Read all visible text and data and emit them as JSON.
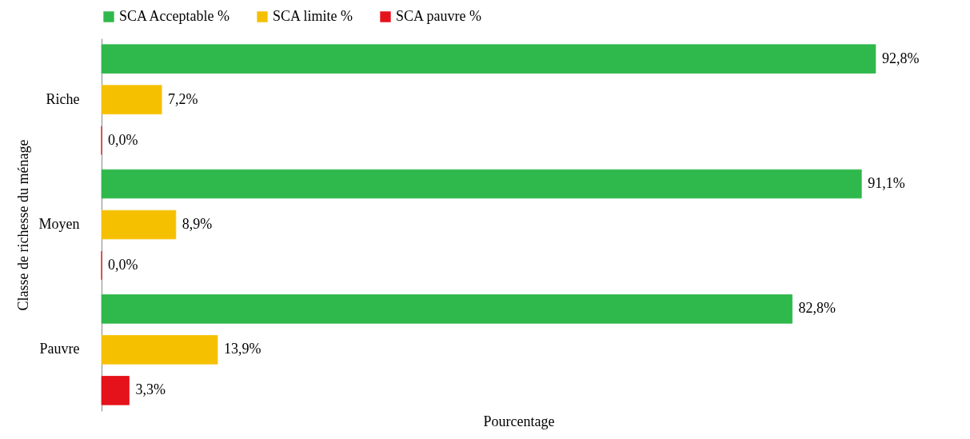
{
  "chart_data": {
    "type": "bar",
    "orientation": "horizontal",
    "xlabel": "Pourcentage",
    "ylabel": "Classe de richesse du ménage",
    "legend": "top",
    "categories": [
      "Riche",
      "Moyen",
      "Pauvre"
    ],
    "series": [
      {
        "name": "SCA Acceptable %",
        "color": "#2fb84b",
        "values": [
          92.8,
          91.1,
          82.8
        ],
        "value_labels": [
          "92,8%",
          "91,1%",
          "82,8%"
        ]
      },
      {
        "name": "SCA limite %",
        "color": "#f5c000",
        "values": [
          7.2,
          8.9,
          13.9
        ],
        "value_labels": [
          "7,2%",
          "8,9%",
          "13,9%"
        ]
      },
      {
        "name": "SCA pauvre %",
        "color": "#e5111b",
        "values": [
          0,
          0,
          3.3
        ],
        "value_labels": [
          "0,0%",
          "0,0%",
          "3,3%"
        ]
      }
    ]
  }
}
